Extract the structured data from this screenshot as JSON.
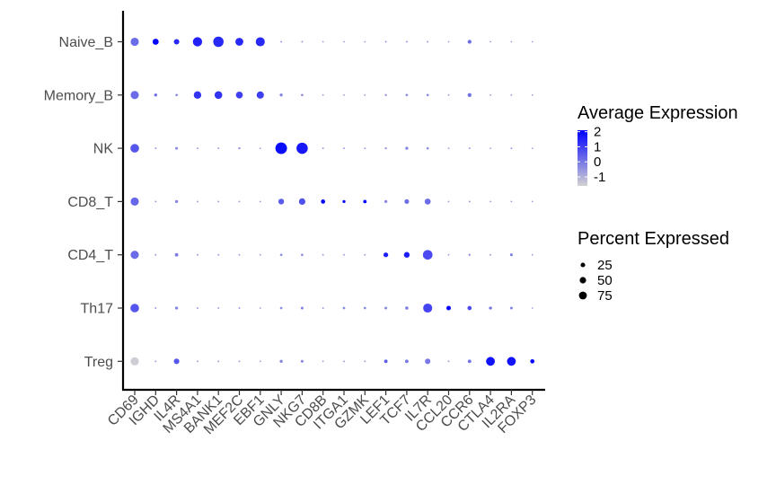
{
  "chart_data": {
    "type": "dotplot",
    "title": "",
    "xlabel": "",
    "ylabel": "",
    "x_categories": [
      "CD69",
      "IGHD",
      "IL4R",
      "MS4A1",
      "BANK1",
      "MEF2C",
      "EBF1",
      "GNLY",
      "NKG7",
      "CD8B",
      "ITGA1",
      "GZMK",
      "LEF1",
      "TCF7",
      "IL7R",
      "CCL20",
      "CCR6",
      "CTLA4",
      "IL2RA",
      "FOXP3"
    ],
    "y_categories": [
      "Treg",
      "Th17",
      "CD4_T",
      "CD8_T",
      "NK",
      "Memory_B",
      "Naive_B"
    ],
    "points": [
      {
        "group": "Naive_B",
        "gene": "CD69",
        "avg_exp": 0.2,
        "pct_exp": 45
      },
      {
        "group": "Naive_B",
        "gene": "IGHD",
        "avg_exp": 2.0,
        "pct_exp": 25
      },
      {
        "group": "Naive_B",
        "gene": "IL4R",
        "avg_exp": 1.4,
        "pct_exp": 20
      },
      {
        "group": "Naive_B",
        "gene": "MS4A1",
        "avg_exp": 1.5,
        "pct_exp": 58
      },
      {
        "group": "Naive_B",
        "gene": "BANK1",
        "avg_exp": 1.4,
        "pct_exp": 72
      },
      {
        "group": "Naive_B",
        "gene": "MEF2C",
        "avg_exp": 1.4,
        "pct_exp": 42
      },
      {
        "group": "Naive_B",
        "gene": "EBF1",
        "avg_exp": 1.4,
        "pct_exp": 55
      },
      {
        "group": "Naive_B",
        "gene": "GNLY",
        "avg_exp": -0.6,
        "pct_exp": 2
      },
      {
        "group": "Naive_B",
        "gene": "NKG7",
        "avg_exp": -0.6,
        "pct_exp": 2
      },
      {
        "group": "Naive_B",
        "gene": "CD8B",
        "avg_exp": -0.6,
        "pct_exp": 1
      },
      {
        "group": "Naive_B",
        "gene": "ITGA1",
        "avg_exp": -0.6,
        "pct_exp": 1
      },
      {
        "group": "Naive_B",
        "gene": "GZMK",
        "avg_exp": -0.6,
        "pct_exp": 1
      },
      {
        "group": "Naive_B",
        "gene": "LEF1",
        "avg_exp": -0.5,
        "pct_exp": 2
      },
      {
        "group": "Naive_B",
        "gene": "TCF7",
        "avg_exp": -0.5,
        "pct_exp": 2
      },
      {
        "group": "Naive_B",
        "gene": "IL7R",
        "avg_exp": -0.6,
        "pct_exp": 2
      },
      {
        "group": "Naive_B",
        "gene": "CCL20",
        "avg_exp": -0.6,
        "pct_exp": 1
      },
      {
        "group": "Naive_B",
        "gene": "CCR6",
        "avg_exp": 0.2,
        "pct_exp": 10
      },
      {
        "group": "Naive_B",
        "gene": "CTLA4",
        "avg_exp": -0.6,
        "pct_exp": 1
      },
      {
        "group": "Naive_B",
        "gene": "IL2RA",
        "avg_exp": -0.6,
        "pct_exp": 1
      },
      {
        "group": "Naive_B",
        "gene": "FOXP3",
        "avg_exp": -0.6,
        "pct_exp": 1
      },
      {
        "group": "Memory_B",
        "gene": "CD69",
        "avg_exp": 0.2,
        "pct_exp": 45
      },
      {
        "group": "Memory_B",
        "gene": "IGHD",
        "avg_exp": 0.2,
        "pct_exp": 6
      },
      {
        "group": "Memory_B",
        "gene": "IL4R",
        "avg_exp": -0.3,
        "pct_exp": 4
      },
      {
        "group": "Memory_B",
        "gene": "MS4A1",
        "avg_exp": 1.2,
        "pct_exp": 38
      },
      {
        "group": "Memory_B",
        "gene": "BANK1",
        "avg_exp": 1.2,
        "pct_exp": 40
      },
      {
        "group": "Memory_B",
        "gene": "MEF2C",
        "avg_exp": 1.0,
        "pct_exp": 32
      },
      {
        "group": "Memory_B",
        "gene": "EBF1",
        "avg_exp": 1.0,
        "pct_exp": 35
      },
      {
        "group": "Memory_B",
        "gene": "GNLY",
        "avg_exp": -0.2,
        "pct_exp": 6
      },
      {
        "group": "Memory_B",
        "gene": "NKG7",
        "avg_exp": -0.4,
        "pct_exp": 4
      },
      {
        "group": "Memory_B",
        "gene": "CD8B",
        "avg_exp": -0.6,
        "pct_exp": 1
      },
      {
        "group": "Memory_B",
        "gene": "ITGA1",
        "avg_exp": -0.6,
        "pct_exp": 1
      },
      {
        "group": "Memory_B",
        "gene": "GZMK",
        "avg_exp": -0.6,
        "pct_exp": 1
      },
      {
        "group": "Memory_B",
        "gene": "LEF1",
        "avg_exp": -0.4,
        "pct_exp": 3
      },
      {
        "group": "Memory_B",
        "gene": "TCF7",
        "avg_exp": -0.3,
        "pct_exp": 4
      },
      {
        "group": "Memory_B",
        "gene": "IL7R",
        "avg_exp": -0.3,
        "pct_exp": 4
      },
      {
        "group": "Memory_B",
        "gene": "CCL20",
        "avg_exp": -0.6,
        "pct_exp": 1
      },
      {
        "group": "Memory_B",
        "gene": "CCR6",
        "avg_exp": 0.1,
        "pct_exp": 10
      },
      {
        "group": "Memory_B",
        "gene": "CTLA4",
        "avg_exp": -0.6,
        "pct_exp": 1
      },
      {
        "group": "Memory_B",
        "gene": "IL2RA",
        "avg_exp": -0.6,
        "pct_exp": 2
      },
      {
        "group": "Memory_B",
        "gene": "FOXP3",
        "avg_exp": -0.6,
        "pct_exp": 1
      },
      {
        "group": "NK",
        "gene": "CD69",
        "avg_exp": 0.6,
        "pct_exp": 50
      },
      {
        "group": "NK",
        "gene": "IGHD",
        "avg_exp": -0.6,
        "pct_exp": 2
      },
      {
        "group": "NK",
        "gene": "IL4R",
        "avg_exp": -0.3,
        "pct_exp": 5
      },
      {
        "group": "NK",
        "gene": "MS4A1",
        "avg_exp": -0.6,
        "pct_exp": 2
      },
      {
        "group": "NK",
        "gene": "BANK1",
        "avg_exp": -0.6,
        "pct_exp": 2
      },
      {
        "group": "NK",
        "gene": "MEF2C",
        "avg_exp": -0.4,
        "pct_exp": 3
      },
      {
        "group": "NK",
        "gene": "EBF1",
        "avg_exp": -0.6,
        "pct_exp": 1
      },
      {
        "group": "NK",
        "gene": "GNLY",
        "avg_exp": 1.9,
        "pct_exp": 90
      },
      {
        "group": "NK",
        "gene": "NKG7",
        "avg_exp": 1.7,
        "pct_exp": 85
      },
      {
        "group": "NK",
        "gene": "CD8B",
        "avg_exp": -0.6,
        "pct_exp": 2
      },
      {
        "group": "NK",
        "gene": "ITGA1",
        "avg_exp": -0.6,
        "pct_exp": 2
      },
      {
        "group": "NK",
        "gene": "GZMK",
        "avg_exp": -0.6,
        "pct_exp": 2
      },
      {
        "group": "NK",
        "gene": "LEF1",
        "avg_exp": -0.5,
        "pct_exp": 3
      },
      {
        "group": "NK",
        "gene": "TCF7",
        "avg_exp": -0.2,
        "pct_exp": 6
      },
      {
        "group": "NK",
        "gene": "IL7R",
        "avg_exp": -0.4,
        "pct_exp": 4
      },
      {
        "group": "NK",
        "gene": "CCL20",
        "avg_exp": -0.6,
        "pct_exp": 1
      },
      {
        "group": "NK",
        "gene": "CCR6",
        "avg_exp": -0.6,
        "pct_exp": 2
      },
      {
        "group": "NK",
        "gene": "CTLA4",
        "avg_exp": -0.6,
        "pct_exp": 1
      },
      {
        "group": "NK",
        "gene": "IL2RA",
        "avg_exp": -0.6,
        "pct_exp": 2
      },
      {
        "group": "NK",
        "gene": "FOXP3",
        "avg_exp": -0.6,
        "pct_exp": 1
      },
      {
        "group": "CD8_T",
        "gene": "CD69",
        "avg_exp": 0.3,
        "pct_exp": 45
      },
      {
        "group": "CD8_T",
        "gene": "IGHD",
        "avg_exp": -0.6,
        "pct_exp": 2
      },
      {
        "group": "CD8_T",
        "gene": "IL4R",
        "avg_exp": -0.2,
        "pct_exp": 6
      },
      {
        "group": "CD8_T",
        "gene": "MS4A1",
        "avg_exp": -0.6,
        "pct_exp": 2
      },
      {
        "group": "CD8_T",
        "gene": "BANK1",
        "avg_exp": -0.6,
        "pct_exp": 2
      },
      {
        "group": "CD8_T",
        "gene": "MEF2C",
        "avg_exp": -0.6,
        "pct_exp": 2
      },
      {
        "group": "CD8_T",
        "gene": "EBF1",
        "avg_exp": -0.6,
        "pct_exp": 1
      },
      {
        "group": "CD8_T",
        "gene": "GNLY",
        "avg_exp": 0.5,
        "pct_exp": 22
      },
      {
        "group": "CD8_T",
        "gene": "NKG7",
        "avg_exp": 0.7,
        "pct_exp": 28
      },
      {
        "group": "CD8_T",
        "gene": "CD8B",
        "avg_exp": 2.0,
        "pct_exp": 12
      },
      {
        "group": "CD8_T",
        "gene": "ITGA1",
        "avg_exp": 2.0,
        "pct_exp": 6
      },
      {
        "group": "CD8_T",
        "gene": "GZMK",
        "avg_exp": 2.0,
        "pct_exp": 8
      },
      {
        "group": "CD8_T",
        "gene": "LEF1",
        "avg_exp": -0.3,
        "pct_exp": 6
      },
      {
        "group": "CD8_T",
        "gene": "TCF7",
        "avg_exp": 0.2,
        "pct_exp": 14
      },
      {
        "group": "CD8_T",
        "gene": "IL7R",
        "avg_exp": 0.2,
        "pct_exp": 24
      },
      {
        "group": "CD8_T",
        "gene": "CCL20",
        "avg_exp": -0.6,
        "pct_exp": 1
      },
      {
        "group": "CD8_T",
        "gene": "CCR6",
        "avg_exp": -0.6,
        "pct_exp": 2
      },
      {
        "group": "CD8_T",
        "gene": "CTLA4",
        "avg_exp": -0.6,
        "pct_exp": 1
      },
      {
        "group": "CD8_T",
        "gene": "IL2RA",
        "avg_exp": -0.6,
        "pct_exp": 1
      },
      {
        "group": "CD8_T",
        "gene": "FOXP3",
        "avg_exp": -0.6,
        "pct_exp": 1
      },
      {
        "group": "CD4_T",
        "gene": "CD69",
        "avg_exp": 0.2,
        "pct_exp": 45
      },
      {
        "group": "CD4_T",
        "gene": "IGHD",
        "avg_exp": -0.6,
        "pct_exp": 2
      },
      {
        "group": "CD4_T",
        "gene": "IL4R",
        "avg_exp": -0.1,
        "pct_exp": 8
      },
      {
        "group": "CD4_T",
        "gene": "MS4A1",
        "avg_exp": -0.6,
        "pct_exp": 2
      },
      {
        "group": "CD4_T",
        "gene": "BANK1",
        "avg_exp": -0.6,
        "pct_exp": 2
      },
      {
        "group": "CD4_T",
        "gene": "MEF2C",
        "avg_exp": -0.6,
        "pct_exp": 2
      },
      {
        "group": "CD4_T",
        "gene": "EBF1",
        "avg_exp": -0.6,
        "pct_exp": 1
      },
      {
        "group": "CD4_T",
        "gene": "GNLY",
        "avg_exp": -0.4,
        "pct_exp": 4
      },
      {
        "group": "CD4_T",
        "gene": "NKG7",
        "avg_exp": -0.4,
        "pct_exp": 4
      },
      {
        "group": "CD4_T",
        "gene": "CD8B",
        "avg_exp": -0.6,
        "pct_exp": 2
      },
      {
        "group": "CD4_T",
        "gene": "ITGA1",
        "avg_exp": -0.6,
        "pct_exp": 2
      },
      {
        "group": "CD4_T",
        "gene": "GZMK",
        "avg_exp": -0.6,
        "pct_exp": 2
      },
      {
        "group": "CD4_T",
        "gene": "LEF1",
        "avg_exp": 1.6,
        "pct_exp": 15
      },
      {
        "group": "CD4_T",
        "gene": "TCF7",
        "avg_exp": 1.6,
        "pct_exp": 22
      },
      {
        "group": "CD4_T",
        "gene": "IL7R",
        "avg_exp": 0.8,
        "pct_exp": 62
      },
      {
        "group": "CD4_T",
        "gene": "CCL20",
        "avg_exp": -0.6,
        "pct_exp": 1
      },
      {
        "group": "CD4_T",
        "gene": "CCR6",
        "avg_exp": -0.4,
        "pct_exp": 3
      },
      {
        "group": "CD4_T",
        "gene": "CTLA4",
        "avg_exp": -0.6,
        "pct_exp": 2
      },
      {
        "group": "CD4_T",
        "gene": "IL2RA",
        "avg_exp": -0.1,
        "pct_exp": 5
      },
      {
        "group": "CD4_T",
        "gene": "FOXP3",
        "avg_exp": -0.6,
        "pct_exp": 1
      },
      {
        "group": "Th17",
        "gene": "CD69",
        "avg_exp": 0.6,
        "pct_exp": 50
      },
      {
        "group": "Th17",
        "gene": "IGHD",
        "avg_exp": -0.6,
        "pct_exp": 2
      },
      {
        "group": "Th17",
        "gene": "IL4R",
        "avg_exp": -0.2,
        "pct_exp": 6
      },
      {
        "group": "Th17",
        "gene": "MS4A1",
        "avg_exp": -0.6,
        "pct_exp": 2
      },
      {
        "group": "Th17",
        "gene": "BANK1",
        "avg_exp": -0.6,
        "pct_exp": 2
      },
      {
        "group": "Th17",
        "gene": "MEF2C",
        "avg_exp": -0.6,
        "pct_exp": 2
      },
      {
        "group": "Th17",
        "gene": "EBF1",
        "avg_exp": -0.6,
        "pct_exp": 1
      },
      {
        "group": "Th17",
        "gene": "GNLY",
        "avg_exp": -0.4,
        "pct_exp": 4
      },
      {
        "group": "Th17",
        "gene": "NKG7",
        "avg_exp": -0.2,
        "pct_exp": 5
      },
      {
        "group": "Th17",
        "gene": "CD8B",
        "avg_exp": -0.6,
        "pct_exp": 2
      },
      {
        "group": "Th17",
        "gene": "ITGA1",
        "avg_exp": -0.3,
        "pct_exp": 4
      },
      {
        "group": "Th17",
        "gene": "GZMK",
        "avg_exp": -0.3,
        "pct_exp": 4
      },
      {
        "group": "Th17",
        "gene": "LEF1",
        "avg_exp": -0.3,
        "pct_exp": 5
      },
      {
        "group": "Th17",
        "gene": "TCF7",
        "avg_exp": -0.1,
        "pct_exp": 7
      },
      {
        "group": "Th17",
        "gene": "IL7R",
        "avg_exp": 0.9,
        "pct_exp": 55
      },
      {
        "group": "Th17",
        "gene": "CCL20",
        "avg_exp": 2.0,
        "pct_exp": 14
      },
      {
        "group": "Th17",
        "gene": "CCR6",
        "avg_exp": 0.8,
        "pct_exp": 12
      },
      {
        "group": "Th17",
        "gene": "CTLA4",
        "avg_exp": 0.1,
        "pct_exp": 6
      },
      {
        "group": "Th17",
        "gene": "IL2RA",
        "avg_exp": -0.2,
        "pct_exp": 5
      },
      {
        "group": "Th17",
        "gene": "FOXP3",
        "avg_exp": -0.6,
        "pct_exp": 1
      },
      {
        "group": "Treg",
        "gene": "CD69",
        "avg_exp": -1.5,
        "pct_exp": 45
      },
      {
        "group": "Treg",
        "gene": "IGHD",
        "avg_exp": -0.6,
        "pct_exp": 2
      },
      {
        "group": "Treg",
        "gene": "IL4R",
        "avg_exp": 0.6,
        "pct_exp": 20
      },
      {
        "group": "Treg",
        "gene": "MS4A1",
        "avg_exp": -0.6,
        "pct_exp": 2
      },
      {
        "group": "Treg",
        "gene": "BANK1",
        "avg_exp": -0.6,
        "pct_exp": 2
      },
      {
        "group": "Treg",
        "gene": "MEF2C",
        "avg_exp": -0.6,
        "pct_exp": 2
      },
      {
        "group": "Treg",
        "gene": "EBF1",
        "avg_exp": -0.6,
        "pct_exp": 1
      },
      {
        "group": "Treg",
        "gene": "GNLY",
        "avg_exp": -0.2,
        "pct_exp": 6
      },
      {
        "group": "Treg",
        "gene": "NKG7",
        "avg_exp": -0.2,
        "pct_exp": 5
      },
      {
        "group": "Treg",
        "gene": "CD8B",
        "avg_exp": -0.6,
        "pct_exp": 1
      },
      {
        "group": "Treg",
        "gene": "ITGA1",
        "avg_exp": -0.6,
        "pct_exp": 2
      },
      {
        "group": "Treg",
        "gene": "GZMK",
        "avg_exp": -0.6,
        "pct_exp": 2
      },
      {
        "group": "Treg",
        "gene": "LEF1",
        "avg_exp": 0.5,
        "pct_exp": 8
      },
      {
        "group": "Treg",
        "gene": "TCF7",
        "avg_exp": 0.0,
        "pct_exp": 8
      },
      {
        "group": "Treg",
        "gene": "IL7R",
        "avg_exp": 0.0,
        "pct_exp": 20
      },
      {
        "group": "Treg",
        "gene": "CCL20",
        "avg_exp": -0.6,
        "pct_exp": 2
      },
      {
        "group": "Treg",
        "gene": "CCR6",
        "avg_exp": 0.1,
        "pct_exp": 8
      },
      {
        "group": "Treg",
        "gene": "CTLA4",
        "avg_exp": 1.8,
        "pct_exp": 52
      },
      {
        "group": "Treg",
        "gene": "IL2RA",
        "avg_exp": 1.8,
        "pct_exp": 52
      },
      {
        "group": "Treg",
        "gene": "FOXP3",
        "avg_exp": 2.0,
        "pct_exp": 12
      }
    ],
    "color_legend": {
      "title": "Average Expression",
      "ticks": [
        "2",
        "1",
        "0",
        "-1"
      ],
      "tick_values": [
        2,
        1,
        0,
        -1
      ],
      "range": [
        -1.6,
        2.1
      ],
      "low_color": "#D3D3D3",
      "high_color": "#0000FF"
    },
    "size_legend": {
      "title": "Percent Expressed",
      "entries": [
        {
          "label": "25",
          "value": 25
        },
        {
          "label": "50",
          "value": 50
        },
        {
          "label": "75",
          "value": 75
        }
      ]
    },
    "legend_position": "right",
    "grid": false
  }
}
